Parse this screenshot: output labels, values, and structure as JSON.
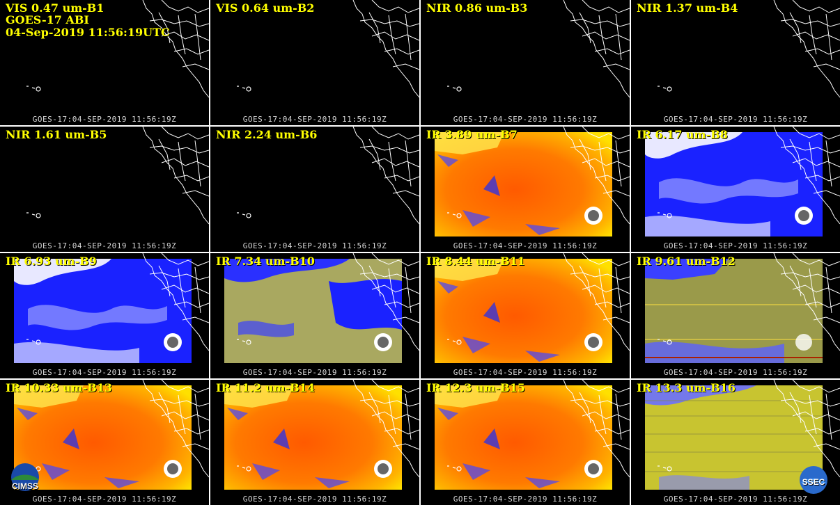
{
  "title_lines": [
    "GOES-17 ABI",
    "04-Sep-2019 11:56:19UTC"
  ],
  "timestamp_overlay": "GOES-17:04-SEP-2019 11:56:19Z",
  "panels": [
    {
      "label": "VIS 0.47 um-B1",
      "type": "vis"
    },
    {
      "label": "VIS 0.64 um-B2",
      "type": "vis"
    },
    {
      "label": "NIR 0.86 um-B3",
      "type": "vis"
    },
    {
      "label": "NIR 1.37 um-B4",
      "type": "vis"
    },
    {
      "label": "NIR 1.61 um-B5",
      "type": "vis"
    },
    {
      "label": "NIR 2.24 um-B6",
      "type": "vis"
    },
    {
      "label": "IR 3.89 um-B7",
      "type": "ir-warm"
    },
    {
      "label": "IR 6.17 um-B8",
      "type": "wv"
    },
    {
      "label": "IR 6.93 um-B9",
      "type": "wv"
    },
    {
      "label": "IR 7.34 um-B10",
      "type": "wv-olive"
    },
    {
      "label": "IR 8.44 um-B11",
      "type": "ir-warm"
    },
    {
      "label": "IR 9.61 um-B12",
      "type": "ozone"
    },
    {
      "label": "IR 10.33 um-B13",
      "type": "ir-warm"
    },
    {
      "label": "IR 11.2 um-B14",
      "type": "ir-warm"
    },
    {
      "label": "IR 12.3 um-B15",
      "type": "ir-warm"
    },
    {
      "label": "IR 13.3 um-B16",
      "type": "co2"
    }
  ],
  "logos": {
    "left": "CIMSS",
    "right": "SSEC"
  },
  "colors": {
    "label": "#ffff00",
    "coastline": "#ffffff",
    "background": "#000000"
  }
}
